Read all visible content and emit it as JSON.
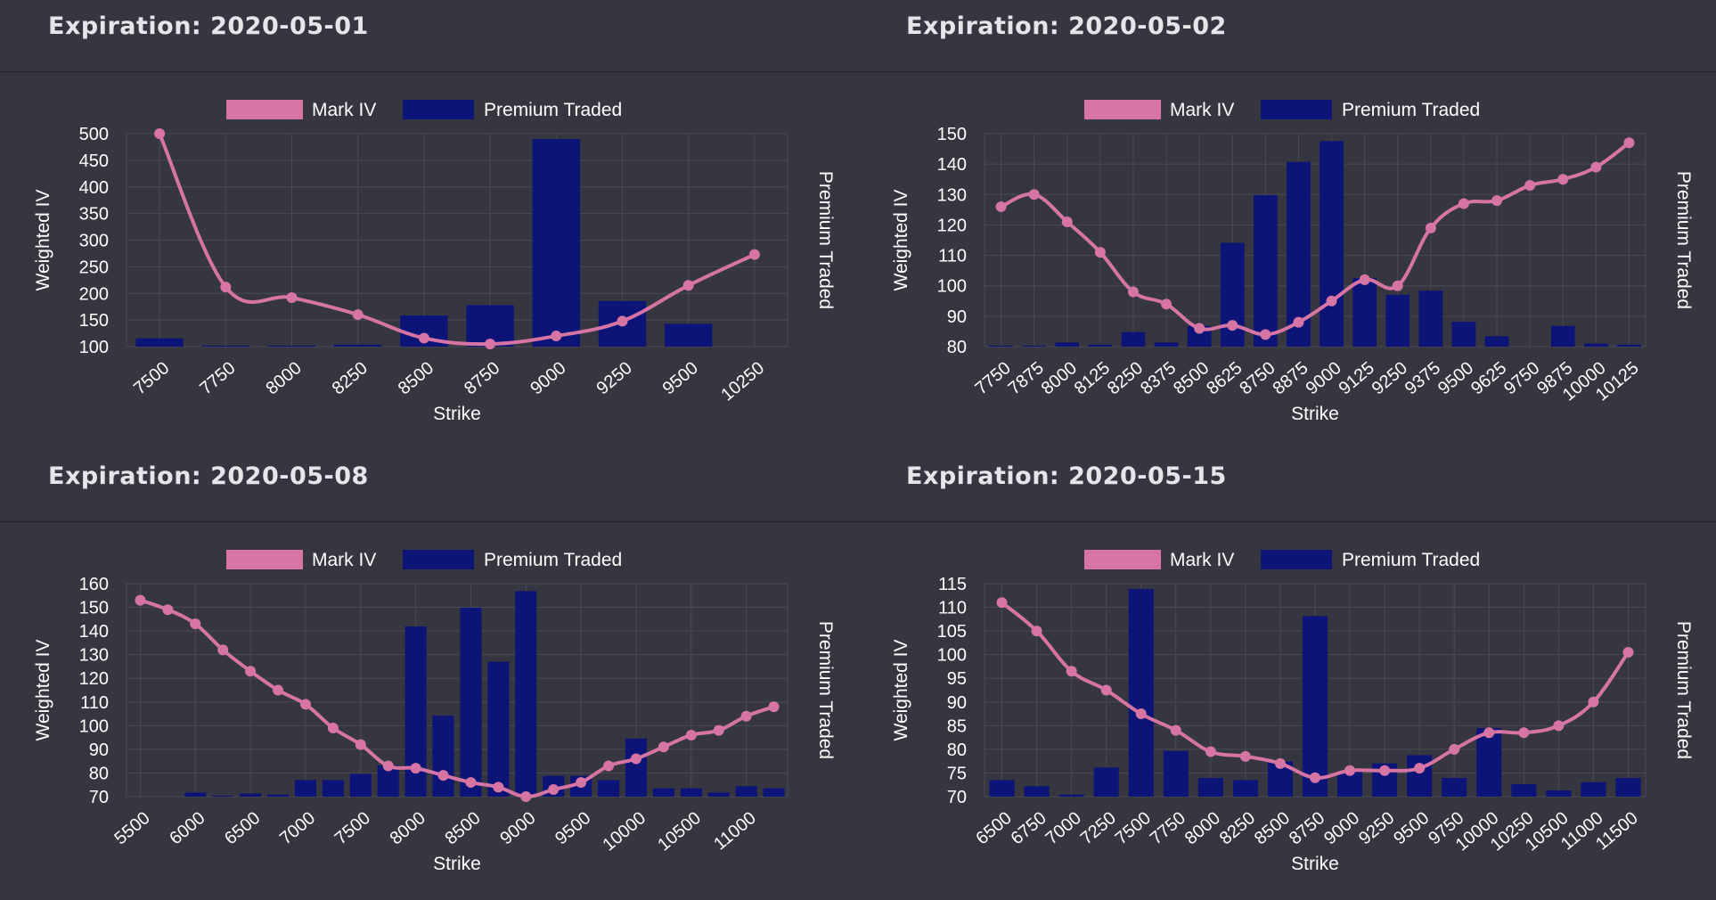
{
  "colors": {
    "background": "#363640",
    "iv_line": "#d675a4",
    "premium_bar": "#0d1478",
    "grid": "#4a4a55"
  },
  "legend": {
    "iv": "Mark IV",
    "premium": "Premium Traded"
  },
  "axes": {
    "xlabel": "Strike",
    "ylabel_left": "Weighted IV",
    "ylabel_right": "Premium Traded"
  },
  "panels": [
    {
      "title": "Expiration: 2020-05-01"
    },
    {
      "title": "Expiration: 2020-05-02"
    },
    {
      "title": "Expiration: 2020-05-08"
    },
    {
      "title": "Expiration: 2020-05-15"
    }
  ],
  "chart_data": [
    {
      "type": "bar+line",
      "title": "Expiration: 2020-05-01",
      "xlabel": "Strike",
      "ylabel": "Weighted IV",
      "y2label": "Premium Traded",
      "legend": [
        "Mark IV",
        "Premium Traded"
      ],
      "categories": [
        "7500",
        "7750",
        "8000",
        "8250",
        "8500",
        "8750",
        "9000",
        "9250",
        "9500",
        "10250"
      ],
      "ylim": [
        100,
        500
      ],
      "yticks": [
        100,
        150,
        200,
        250,
        300,
        350,
        400,
        450,
        500
      ],
      "series": [
        {
          "name": "Mark IV",
          "kind": "line",
          "values": [
            500,
            212,
            192,
            160,
            116,
            105,
            120,
            148,
            215,
            273
          ]
        },
        {
          "name": "Premium Traded",
          "kind": "bar",
          "values_rel": [
            0.04,
            0.005,
            0.005,
            0.01,
            0.15,
            0.2,
            1.0,
            0.22,
            0.11,
            0
          ]
        }
      ]
    },
    {
      "type": "bar+line",
      "title": "Expiration: 2020-05-02",
      "xlabel": "Strike",
      "ylabel": "Weighted IV",
      "y2label": "Premium Traded",
      "legend": [
        "Mark IV",
        "Premium Traded"
      ],
      "categories": [
        "7750",
        "7875",
        "8000",
        "8125",
        "8250",
        "8375",
        "8500",
        "8625",
        "8750",
        "8875",
        "9000",
        "9125",
        "9250",
        "9375",
        "9500",
        "9625",
        "9750",
        "9875",
        "10000",
        "10125"
      ],
      "ylim": [
        80,
        150
      ],
      "yticks": [
        80,
        90,
        100,
        110,
        120,
        130,
        140,
        150
      ],
      "series": [
        {
          "name": "Mark IV",
          "kind": "line",
          "values": [
            126,
            130,
            121,
            111,
            98,
            94,
            86,
            87,
            84,
            88,
            95,
            102,
            100,
            119,
            127,
            128,
            133,
            135,
            139,
            147
          ]
        },
        {
          "name": "Premium Traded",
          "kind": "bar",
          "values_rel": [
            0.005,
            0.005,
            0.02,
            0.01,
            0.07,
            0.02,
            0.1,
            0.5,
            0.73,
            0.89,
            0.99,
            0.33,
            0.25,
            0.27,
            0.12,
            0.05,
            0,
            0.1,
            0.015,
            0.01
          ]
        }
      ]
    },
    {
      "type": "bar+line",
      "title": "Expiration: 2020-05-08",
      "xlabel": "Strike",
      "ylabel": "Weighted IV",
      "y2label": "Premium Traded",
      "legend": [
        "Mark IV",
        "Premium Traded"
      ],
      "categories": [
        "5500",
        "6000",
        "6500",
        "7000",
        "7500",
        "8000",
        "8500",
        "9000",
        "9500",
        "10000",
        "10500",
        "11000"
      ],
      "ylim": [
        70,
        160
      ],
      "yticks": [
        70,
        80,
        90,
        100,
        110,
        120,
        130,
        140,
        150,
        160
      ],
      "series": [
        {
          "name": "Mark IV",
          "kind": "line",
          "x": [
            5500,
            5750,
            6000,
            6250,
            6500,
            6750,
            7000,
            7250,
            7500,
            7750,
            8000,
            8250,
            8500,
            8750,
            9000,
            9250,
            9500,
            9750,
            10000,
            10250,
            10500,
            10750,
            11000,
            11250
          ],
          "values": [
            153,
            149,
            143,
            132,
            123,
            115,
            109,
            99,
            92,
            83,
            82,
            79,
            76,
            74,
            70,
            73,
            76,
            83,
            86,
            91,
            96,
            98,
            104,
            108
          ]
        },
        {
          "name": "Premium Traded",
          "kind": "bar",
          "x": [
            5500,
            5750,
            6000,
            6250,
            6500,
            6750,
            7000,
            7250,
            7500,
            7750,
            8000,
            8250,
            8500,
            8750,
            9000,
            9250,
            9500,
            9750,
            10000,
            10250,
            10500,
            10750,
            11000,
            11250
          ],
          "values_rel": [
            0,
            0,
            0.02,
            0.005,
            0.015,
            0.01,
            0.08,
            0.08,
            0.11,
            0.15,
            0.82,
            0.39,
            0.91,
            0.65,
            0.99,
            0.1,
            0.1,
            0.08,
            0.28,
            0.04,
            0.04,
            0.02,
            0.05,
            0.04
          ]
        }
      ]
    },
    {
      "type": "bar+line",
      "title": "Expiration: 2020-05-15",
      "xlabel": "Strike",
      "ylabel": "Weighted IV",
      "y2label": "Premium Traded",
      "legend": [
        "Mark IV",
        "Premium Traded"
      ],
      "categories": [
        "6500",
        "6750",
        "7000",
        "7250",
        "7500",
        "7750",
        "8000",
        "8250",
        "8500",
        "8750",
        "9000",
        "9250",
        "9500",
        "9750",
        "10000",
        "10250",
        "10500",
        "11000",
        "11500"
      ],
      "ylim": [
        70,
        115
      ],
      "yticks": [
        70,
        75,
        80,
        85,
        90,
        95,
        100,
        105,
        110,
        115
      ],
      "series": [
        {
          "name": "Mark IV",
          "kind": "line",
          "values": [
            111,
            105,
            96.5,
            92.5,
            87.5,
            84,
            79.5,
            78.5,
            77,
            74,
            75.5,
            75.5,
            76,
            80,
            83.5,
            83.5,
            85,
            90,
            100.5
          ]
        },
        {
          "name": "Premium Traded",
          "kind": "bar",
          "values_rel": [
            0.08,
            0.05,
            0.01,
            0.14,
            1.0,
            0.22,
            0.09,
            0.08,
            0.17,
            0.87,
            0.12,
            0.16,
            0.2,
            0.09,
            0.33,
            0.06,
            0.03,
            0.07,
            0.09
          ]
        }
      ]
    }
  ]
}
